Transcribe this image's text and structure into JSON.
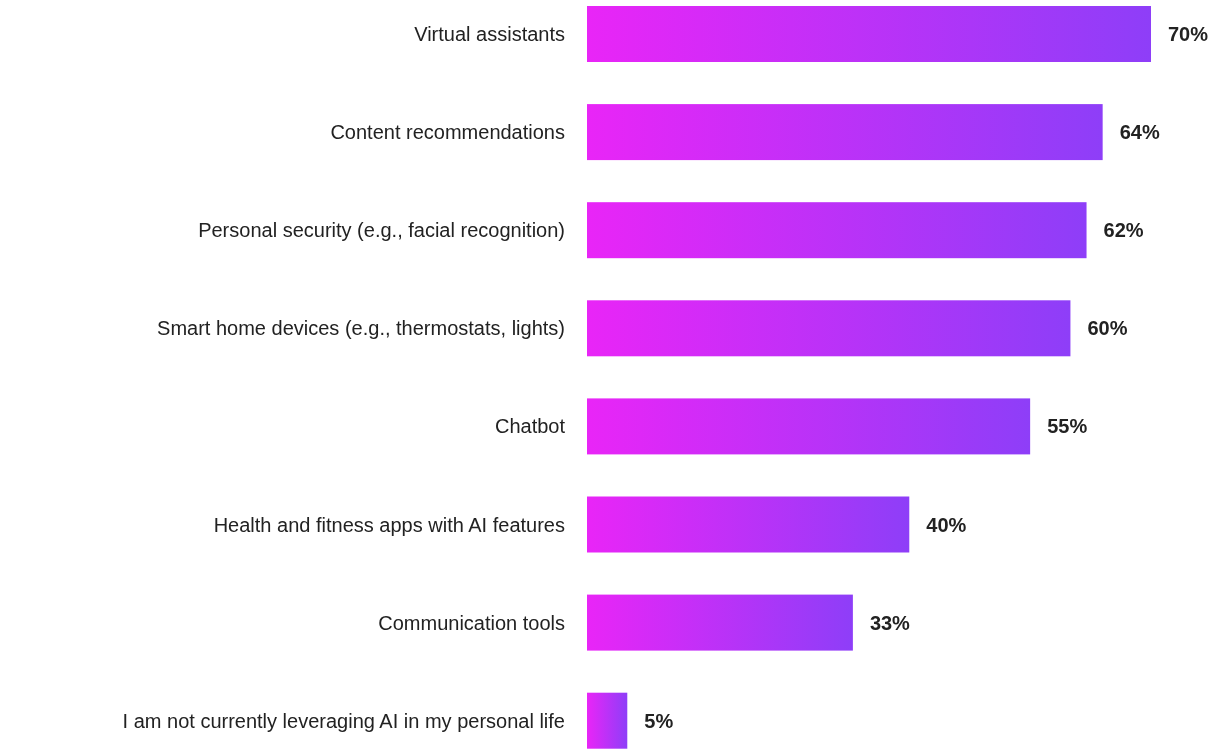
{
  "chart_data": {
    "type": "bar",
    "orientation": "horizontal",
    "categories": [
      "Virtual assistants",
      "Content recommendations",
      "Personal security (e.g., facial recognition)",
      "Smart home devices (e.g., thermostats, lights)",
      "Chatbot",
      "Health and fitness apps with AI features",
      "Communication tools",
      "I am not currently leveraging AI in my personal life"
    ],
    "values": [
      70,
      64,
      62,
      60,
      55,
      40,
      33,
      5
    ],
    "value_labels": [
      "70%",
      "64%",
      "62%",
      "60%",
      "55%",
      "40%",
      "33%",
      "5%"
    ],
    "color": "#b425f7"
  }
}
